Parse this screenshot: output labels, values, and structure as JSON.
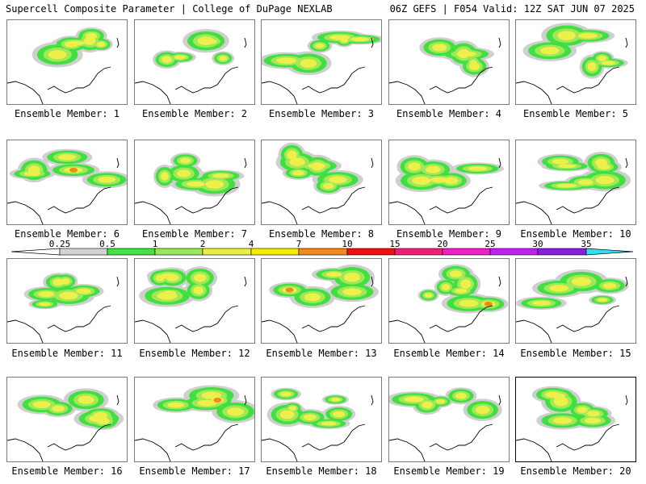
{
  "header": {
    "left": "Supercell Composite Parameter | College of DuPage NEXLAB",
    "right": "06Z GEFS | F054 Valid: 12Z SAT JUN 07 2025"
  },
  "colorbar": {
    "ticks": [
      "0.25",
      "0.5",
      "1",
      "2",
      "4",
      "7",
      "10",
      "15",
      "20",
      "25",
      "30",
      "35"
    ],
    "colors": [
      "#d3d3d3",
      "#41e241",
      "#9ae65a",
      "#eaf040",
      "#f5ee00",
      "#f58a1c",
      "#f01010",
      "#f0207a",
      "#f020c8",
      "#c020f0",
      "#8a1ee0",
      "#b070e0",
      "#30e0f0"
    ]
  },
  "selected_member": 20,
  "members": [
    {
      "label": "Ensemble Member: 1"
    },
    {
      "label": "Ensemble Member: 2"
    },
    {
      "label": "Ensemble Member: 3"
    },
    {
      "label": "Ensemble Member: 4"
    },
    {
      "label": "Ensemble Member: 5"
    },
    {
      "label": "Ensemble Member: 6"
    },
    {
      "label": "Ensemble Member: 7"
    },
    {
      "label": "Ensemble Member: 8"
    },
    {
      "label": "Ensemble Member: 9"
    },
    {
      "label": "Ensemble Member: 10"
    },
    {
      "label": "Ensemble Member: 11"
    },
    {
      "label": "Ensemble Member: 12"
    },
    {
      "label": "Ensemble Member: 13"
    },
    {
      "label": "Ensemble Member: 14"
    },
    {
      "label": "Ensemble Member: 15"
    },
    {
      "label": "Ensemble Member: 16"
    },
    {
      "label": "Ensemble Member: 17"
    },
    {
      "label": "Ensemble Member: 18"
    },
    {
      "label": "Ensemble Member: 19"
    },
    {
      "label": "Ensemble Member: 20"
    }
  ]
}
